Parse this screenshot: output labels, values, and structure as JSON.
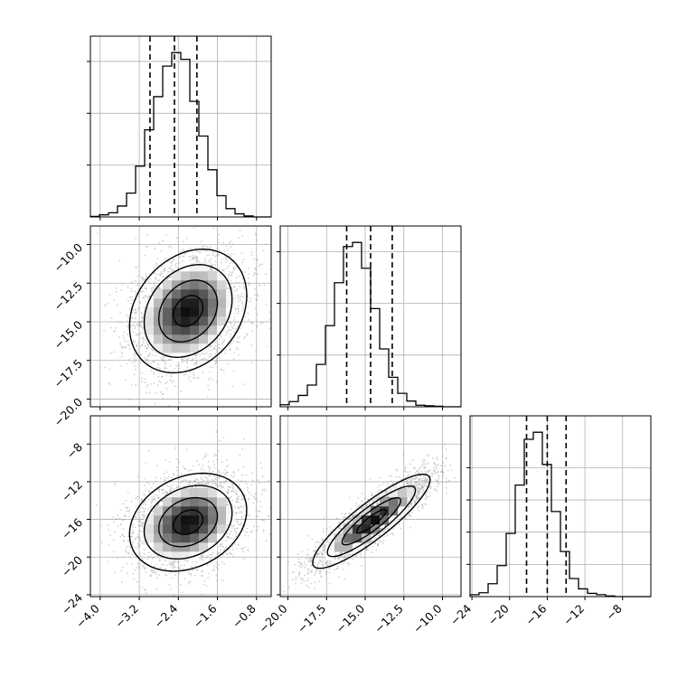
{
  "chart_data": {
    "type": "corner",
    "grid": true,
    "colors": {
      "line": "#000000",
      "scatter": "#9a9a9a",
      "grid": "#b0b0b0"
    },
    "parameters": [
      {
        "index": 0,
        "range": [
          -4.2,
          -0.5
        ],
        "ticks": [
          -4.0,
          -3.2,
          -2.4,
          -1.6,
          -0.8
        ],
        "tick_labels": [
          "−4.0",
          "−3.2",
          "−2.4",
          "−1.6",
          "−0.8"
        ],
        "quantiles": [
          -2.98,
          -2.48,
          -2.02
        ]
      },
      {
        "index": 1,
        "range": [
          -20.5,
          -8.8
        ],
        "ticks": [
          -20.0,
          -17.5,
          -15.0,
          -12.5,
          -10.0
        ],
        "tick_labels": [
          "−20.0",
          "−17.5",
          "−15.0",
          "−12.5",
          "−10.0"
        ],
        "quantiles": [
          -16.2,
          -14.65,
          -13.25
        ]
      },
      {
        "index": 2,
        "range": [
          -24.2,
          -5.0
        ],
        "ticks": [
          -24,
          -20,
          -16,
          -12,
          -8
        ],
        "tick_labels": [
          "−24",
          "−20",
          "−16",
          "−12",
          "−8"
        ],
        "quantiles": [
          -18.2,
          -16.0,
          -14.0
        ]
      }
    ],
    "histograms": [
      {
        "param": 0,
        "bin_edges_range": [
          -4.2,
          -0.5
        ],
        "bins": 20,
        "counts": [
          1,
          4,
          8,
          21,
          46,
          98,
          168,
          232,
          291,
          317,
          304,
          223,
          156,
          91,
          41,
          16,
          6,
          2,
          0,
          0
        ],
        "y_ticks": [
          100,
          200,
          300
        ]
      },
      {
        "param": 1,
        "bin_edges_range": [
          -20.5,
          -8.8
        ],
        "bins": 20,
        "counts": [
          4,
          10,
          22,
          42,
          82,
          157,
          240,
          310,
          318,
          268,
          190,
          112,
          57,
          26,
          11,
          3,
          2,
          1,
          0,
          0
        ],
        "y_ticks": [
          100,
          200,
          300
        ]
      },
      {
        "param": 2,
        "bin_edges_range": [
          -24.2,
          -5.0
        ],
        "bins": 20,
        "counts": [
          3,
          6,
          20,
          48,
          98,
          173,
          244,
          255,
          205,
          132,
          70,
          28,
          12,
          5,
          3,
          1,
          0,
          0,
          0,
          0
        ],
        "y_ticks": [
          50,
          100,
          150,
          200
        ]
      }
    ],
    "pairs": [
      {
        "x_param": 0,
        "y_param": 1,
        "mean": [
          -2.2,
          -14.3
        ],
        "sd": [
          0.6,
          2.0
        ],
        "rho": 0.25,
        "scatter_seed": 11
      },
      {
        "x_param": 0,
        "y_param": 2,
        "mean": [
          -2.2,
          -16.3
        ],
        "sd": [
          0.6,
          2.6
        ],
        "rho": 0.25,
        "scatter_seed": 23
      },
      {
        "x_param": 1,
        "y_param": 2,
        "mean": [
          -14.6,
          -16.2
        ],
        "sd": [
          1.9,
          2.5
        ],
        "rho": 0.88,
        "scatter_seed": 37
      }
    ],
    "contour_levels": [
      0.5,
      1.0,
      1.5,
      2.0
    ]
  }
}
